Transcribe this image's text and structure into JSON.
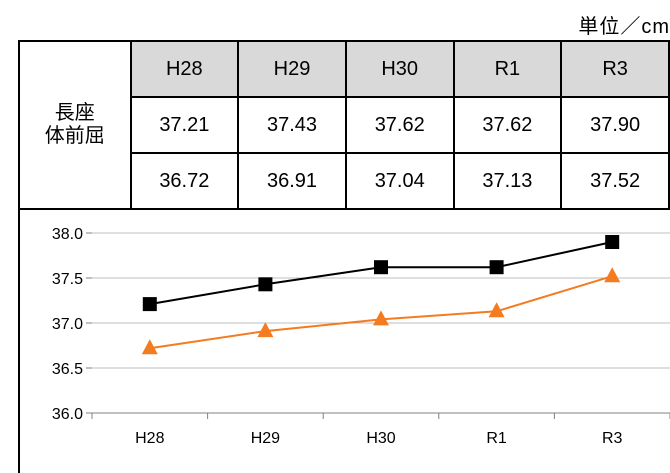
{
  "unit_label": "単位／cm",
  "table": {
    "row_label_line1": "長座",
    "row_label_line2": "体前屈",
    "headers": [
      "H28",
      "H29",
      "H30",
      "R1",
      "R3"
    ],
    "rows": [
      [
        "37.21",
        "37.43",
        "37.62",
        "37.62",
        "37.90"
      ],
      [
        "36.72",
        "36.91",
        "37.04",
        "37.13",
        "37.52"
      ]
    ]
  },
  "colors": {
    "series1": "#000000",
    "series2": "#f47b20",
    "header_bg": "#d9d9d9",
    "grid": "#bfbfbf"
  },
  "chart_data": {
    "type": "line",
    "categories": [
      "H28",
      "H29",
      "H30",
      "R1",
      "R3"
    ],
    "series": [
      {
        "values": [
          37.21,
          37.43,
          37.62,
          37.62,
          37.9
        ],
        "color": "#000000",
        "marker": "square"
      },
      {
        "values": [
          36.72,
          36.91,
          37.04,
          37.13,
          37.52
        ],
        "color": "#f47b20",
        "marker": "triangle"
      }
    ],
    "ylim": [
      36.0,
      38.0
    ],
    "yticks": [
      "36.0",
      "36.5",
      "37.0",
      "37.5",
      "38.0"
    ],
    "grid": true,
    "legend": false
  }
}
